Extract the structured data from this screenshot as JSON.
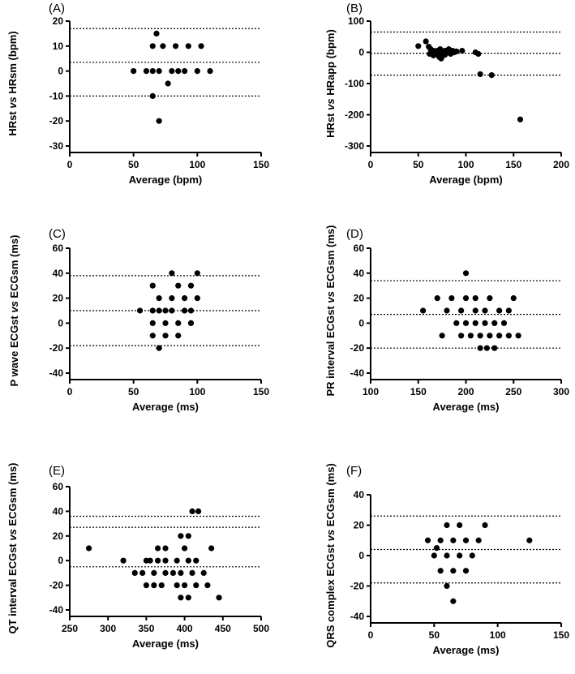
{
  "chart_data": [
    {
      "panel": "(A)",
      "type": "scatter",
      "xlabel": "Average (bpm)",
      "ylabel": {
        "pre": "HRst ",
        "vs": "vs",
        "post": " HRsm  (bpm)"
      },
      "xlim": [
        0,
        150
      ],
      "ylim": [
        -30,
        20
      ],
      "xticks": [
        0,
        50,
        100,
        150
      ],
      "yticks": [
        -30,
        -20,
        -10,
        0,
        10,
        20
      ],
      "hlines": [
        17,
        3.5,
        -10
      ],
      "points": [
        [
          50,
          0
        ],
        [
          60,
          0
        ],
        [
          65,
          0
        ],
        [
          70,
          0
        ],
        [
          80,
          0
        ],
        [
          85,
          0
        ],
        [
          90,
          0
        ],
        [
          100,
          0
        ],
        [
          110,
          0
        ],
        [
          65,
          10
        ],
        [
          73,
          10
        ],
        [
          83,
          10
        ],
        [
          93,
          10
        ],
        [
          103,
          10
        ],
        [
          68,
          15
        ],
        [
          77,
          -5
        ],
        [
          65,
          -10
        ],
        [
          70,
          -20
        ]
      ]
    },
    {
      "panel": "(B)",
      "type": "scatter",
      "xlabel": "Average (bpm)",
      "ylabel": {
        "pre": "HRst ",
        "vs": "vs",
        "post": " HRapp (bpm)"
      },
      "xlim": [
        0,
        200
      ],
      "ylim": [
        -300,
        100
      ],
      "xticks": [
        0,
        50,
        100,
        150,
        200
      ],
      "yticks": [
        -300,
        -200,
        -100,
        0,
        100
      ],
      "hlines": [
        65,
        -3,
        -73
      ],
      "points": [
        [
          50,
          20
        ],
        [
          58,
          35
        ],
        [
          61,
          18
        ],
        [
          63,
          10
        ],
        [
          66,
          5
        ],
        [
          68,
          0
        ],
        [
          70,
          -5
        ],
        [
          72,
          -15
        ],
        [
          73,
          10
        ],
        [
          75,
          0
        ],
        [
          76,
          -10
        ],
        [
          78,
          5
        ],
        [
          80,
          0
        ],
        [
          82,
          10
        ],
        [
          84,
          -5
        ],
        [
          86,
          5
        ],
        [
          88,
          0
        ],
        [
          90,
          3
        ],
        [
          62,
          -5
        ],
        [
          66,
          -10
        ],
        [
          70,
          5
        ],
        [
          74,
          -20
        ],
        [
          78,
          -8
        ],
        [
          96,
          5
        ],
        [
          110,
          0
        ],
        [
          113,
          -5
        ],
        [
          115,
          -70
        ],
        [
          127,
          -73
        ],
        [
          157,
          -215
        ]
      ]
    },
    {
      "panel": "(C)",
      "type": "scatter",
      "xlabel": "Average (ms)",
      "ylabel": {
        "pre": "P wave ECGst ",
        "vs": "vs",
        "post": " ECGsm  (ms)"
      },
      "xlim": [
        0,
        150
      ],
      "ylim": [
        -40,
        60
      ],
      "xticks": [
        0,
        50,
        100,
        150
      ],
      "yticks": [
        -40,
        -20,
        0,
        20,
        40,
        60
      ],
      "hlines": [
        38,
        10,
        -18
      ],
      "points": [
        [
          55,
          10
        ],
        [
          65,
          10
        ],
        [
          70,
          10
        ],
        [
          75,
          10
        ],
        [
          80,
          10
        ],
        [
          90,
          10
        ],
        [
          95,
          10
        ],
        [
          65,
          30
        ],
        [
          85,
          30
        ],
        [
          95,
          30
        ],
        [
          70,
          20
        ],
        [
          80,
          20
        ],
        [
          90,
          20
        ],
        [
          100,
          20
        ],
        [
          65,
          0
        ],
        [
          75,
          0
        ],
        [
          85,
          0
        ],
        [
          95,
          0
        ],
        [
          65,
          -10
        ],
        [
          75,
          -10
        ],
        [
          85,
          -10
        ],
        [
          70,
          -20
        ],
        [
          80,
          40
        ],
        [
          100,
          40
        ]
      ]
    },
    {
      "panel": "(D)",
      "type": "scatter",
      "xlabel": "Average (ms)",
      "ylabel": {
        "pre": "PR interval ECGst ",
        "vs": "vs",
        "post": " ECGsm (ms)"
      },
      "xlim": [
        100,
        300
      ],
      "ylim": [
        -40,
        60
      ],
      "xticks": [
        100,
        150,
        200,
        250,
        300
      ],
      "yticks": [
        -40,
        -20,
        0,
        20,
        40,
        60
      ],
      "hlines": [
        34,
        7,
        -20
      ],
      "points": [
        [
          155,
          10
        ],
        [
          170,
          20
        ],
        [
          185,
          20
        ],
        [
          200,
          20
        ],
        [
          210,
          20
        ],
        [
          225,
          20
        ],
        [
          250,
          20
        ],
        [
          180,
          10
        ],
        [
          195,
          10
        ],
        [
          210,
          10
        ],
        [
          220,
          10
        ],
        [
          235,
          10
        ],
        [
          245,
          10
        ],
        [
          190,
          0
        ],
        [
          200,
          0
        ],
        [
          210,
          0
        ],
        [
          220,
          0
        ],
        [
          230,
          0
        ],
        [
          240,
          0
        ],
        [
          175,
          -10
        ],
        [
          195,
          -10
        ],
        [
          205,
          -10
        ],
        [
          215,
          -10
        ],
        [
          225,
          -10
        ],
        [
          235,
          -10
        ],
        [
          245,
          -10
        ],
        [
          255,
          -10
        ],
        [
          215,
          -20
        ],
        [
          222,
          -20
        ],
        [
          230,
          -20
        ],
        [
          200,
          40
        ]
      ]
    },
    {
      "panel": "(E)",
      "type": "scatter",
      "xlabel": "Average (ms)",
      "ylabel": {
        "pre": "QT interval ECGst ",
        "vs": "vs",
        "post": " ECGsm (ms)"
      },
      "xlim": [
        250,
        500
      ],
      "ylim": [
        -40,
        60
      ],
      "xticks": [
        250,
        300,
        350,
        400,
        450,
        500
      ],
      "yticks": [
        -40,
        -20,
        0,
        20,
        40,
        60
      ],
      "hlines": [
        36,
        27,
        -5
      ],
      "points": [
        [
          275,
          10
        ],
        [
          320,
          0
        ],
        [
          335,
          -10
        ],
        [
          350,
          0
        ],
        [
          355,
          0
        ],
        [
          365,
          0
        ],
        [
          375,
          0
        ],
        [
          390,
          0
        ],
        [
          405,
          0
        ],
        [
          415,
          0
        ],
        [
          345,
          -10
        ],
        [
          360,
          -10
        ],
        [
          375,
          -10
        ],
        [
          385,
          -10
        ],
        [
          395,
          -10
        ],
        [
          410,
          -10
        ],
        [
          425,
          -10
        ],
        [
          350,
          -20
        ],
        [
          360,
          -20
        ],
        [
          370,
          -20
        ],
        [
          390,
          -20
        ],
        [
          400,
          -20
        ],
        [
          415,
          -20
        ],
        [
          430,
          -20
        ],
        [
          395,
          -30
        ],
        [
          405,
          -30
        ],
        [
          445,
          -30
        ],
        [
          365,
          10
        ],
        [
          375,
          10
        ],
        [
          400,
          10
        ],
        [
          435,
          10
        ],
        [
          395,
          20
        ],
        [
          405,
          20
        ],
        [
          410,
          40
        ],
        [
          418,
          40
        ]
      ]
    },
    {
      "panel": "(F)",
      "type": "scatter",
      "xlabel": "Average (ms)",
      "ylabel": {
        "pre": "QRS complex ECGst ",
        "vs": "vs",
        "post": " ECGsm (ms)"
      },
      "xlim": [
        0,
        150
      ],
      "ylim": [
        -40,
        40
      ],
      "xticks": [
        0,
        50,
        100,
        150
      ],
      "yticks": [
        -40,
        -20,
        0,
        20,
        40
      ],
      "hlines": [
        26,
        4,
        -18
      ],
      "points": [
        [
          60,
          20
        ],
        [
          70,
          20
        ],
        [
          90,
          20
        ],
        [
          45,
          10
        ],
        [
          55,
          10
        ],
        [
          65,
          10
        ],
        [
          75,
          10
        ],
        [
          85,
          10
        ],
        [
          125,
          10
        ],
        [
          52,
          5
        ],
        [
          50,
          0
        ],
        [
          60,
          0
        ],
        [
          70,
          0
        ],
        [
          80,
          0
        ],
        [
          55,
          -10
        ],
        [
          65,
          -10
        ],
        [
          75,
          -10
        ],
        [
          60,
          -20
        ],
        [
          65,
          -30
        ]
      ]
    }
  ]
}
